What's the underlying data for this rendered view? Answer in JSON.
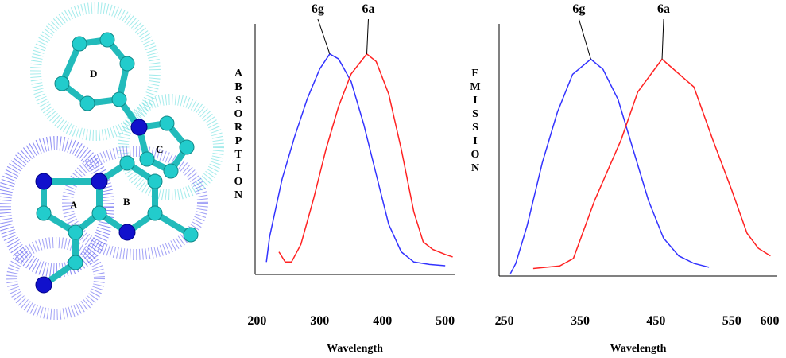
{
  "molecule": {
    "rings": [
      "A",
      "B",
      "C",
      "D"
    ]
  },
  "chart_data": [
    {
      "type": "line",
      "ylabel": "ABSORPTION",
      "xlabel": "Wavelength",
      "xlim": [
        197,
        515
      ],
      "xticks": [
        200,
        300,
        400,
        500
      ],
      "ylim": [
        0,
        1
      ],
      "series": [
        {
          "name": "6g",
          "color": "#3333ff",
          "x": [
            215,
            220,
            240,
            260,
            280,
            300,
            316,
            330,
            350,
            370,
            390,
            410,
            430,
            450,
            475,
            500
          ],
          "values": [
            0.05,
            0.15,
            0.38,
            0.55,
            0.7,
            0.82,
            0.88,
            0.86,
            0.77,
            0.6,
            0.4,
            0.2,
            0.09,
            0.05,
            0.04,
            0.035
          ]
        },
        {
          "name": "6a",
          "color": "#ff2222",
          "x": [
            235,
            245,
            255,
            270,
            290,
            310,
            330,
            350,
            375,
            390,
            410,
            430,
            450,
            465,
            480,
            500,
            512
          ],
          "values": [
            0.09,
            0.05,
            0.05,
            0.12,
            0.3,
            0.5,
            0.67,
            0.8,
            0.88,
            0.85,
            0.72,
            0.5,
            0.25,
            0.13,
            0.1,
            0.08,
            0.07
          ]
        }
      ]
    },
    {
      "type": "line",
      "ylabel": "EMISSION",
      "xlabel": "Wavelength",
      "xlim": [
        243,
        610
      ],
      "xticks": [
        250,
        350,
        450,
        550,
        600
      ],
      "ylim": [
        0,
        1
      ],
      "series": [
        {
          "name": "6g",
          "color": "#3333ff",
          "x": [
            258,
            265,
            280,
            300,
            320,
            340,
            364,
            380,
            400,
            420,
            440,
            460,
            480,
            500,
            520
          ],
          "values": [
            0.01,
            0.05,
            0.2,
            0.45,
            0.65,
            0.8,
            0.86,
            0.82,
            0.7,
            0.5,
            0.3,
            0.15,
            0.08,
            0.05,
            0.035
          ]
        },
        {
          "name": "6a",
          "color": "#ff2222",
          "x": [
            288,
            323,
            341,
            369,
            404,
            426,
            458,
            500,
            525,
            550,
            570,
            585,
            601
          ],
          "values": [
            0.03,
            0.04,
            0.07,
            0.3,
            0.54,
            0.73,
            0.86,
            0.75,
            0.54,
            0.34,
            0.17,
            0.11,
            0.08
          ]
        }
      ]
    }
  ]
}
